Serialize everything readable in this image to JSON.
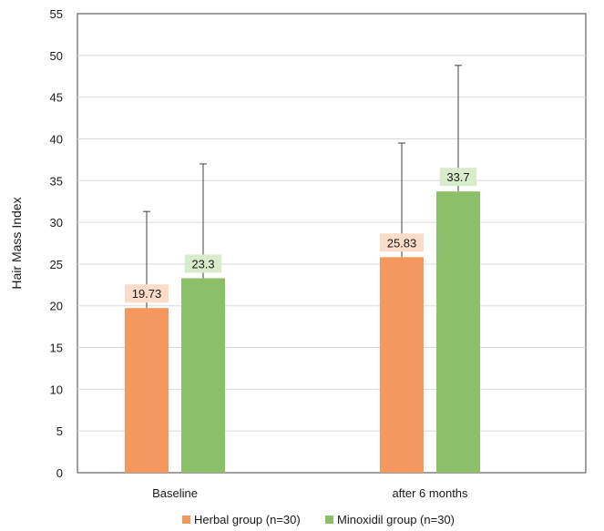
{
  "chart_data": {
    "type": "bar",
    "categories": [
      "Baseline",
      "after 6 months"
    ],
    "series": [
      {
        "name": "Herbal group (n=30)",
        "values": [
          19.73,
          25.83
        ],
        "error_upper": [
          31.3,
          39.5
        ],
        "color": "#f4985f",
        "label_bg": "#fbdcc8"
      },
      {
        "name": "Minoxidil group (n=30)",
        "values": [
          23.3,
          33.7
        ],
        "error_upper": [
          37.0,
          48.8
        ],
        "color": "#8cc068",
        "label_bg": "#d8ebcb"
      }
    ],
    "data_labels": [
      [
        "19.73",
        "25.83"
      ],
      [
        "23.3",
        "33.7"
      ]
    ],
    "xlabel": "",
    "ylabel": "Hair Mass Index",
    "ylim": [
      0,
      55
    ],
    "yticks": [
      0,
      5,
      10,
      15,
      20,
      25,
      30,
      35,
      40,
      45,
      50,
      55
    ],
    "grid": true,
    "legend_position": "bottom"
  }
}
